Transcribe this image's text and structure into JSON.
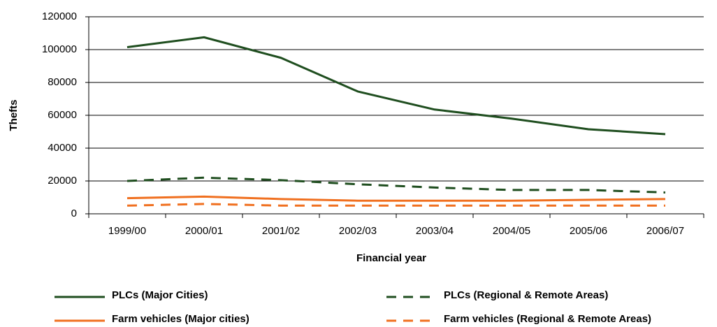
{
  "chart_data": {
    "type": "line",
    "x_label": "Financial year",
    "y_label": "Thefts",
    "categories": [
      "1999/00",
      "2000/01",
      "2001/02",
      "2002/03",
      "2003/04",
      "2004/05",
      "2005/06",
      "2006/07"
    ],
    "series": [
      {
        "name": "PLCs (Major Cities)",
        "color": "#1f4e1f",
        "dashed": false,
        "values": [
          101500,
          107500,
          95000,
          74500,
          63500,
          58000,
          51500,
          48500
        ]
      },
      {
        "name": "PLCs (Regional & Remote Areas)",
        "color": "#1f4e1f",
        "dashed": true,
        "values": [
          20000,
          22000,
          20500,
          18000,
          16000,
          14500,
          14500,
          13000
        ]
      },
      {
        "name": "Farm vehicles (Major cities)",
        "color": "#f07020",
        "dashed": false,
        "values": [
          9500,
          10500,
          9000,
          8000,
          8000,
          8000,
          8500,
          9000
        ]
      },
      {
        "name": "Farm vehicles (Regional & Remote Areas)",
        "color": "#f07020",
        "dashed": true,
        "values": [
          5000,
          6000,
          5000,
          5000,
          5000,
          5000,
          5000,
          5000
        ]
      }
    ],
    "ylim": [
      0,
      120000
    ],
    "yticks": [
      0,
      20000,
      40000,
      60000,
      80000,
      100000,
      120000
    ],
    "grid": true
  }
}
